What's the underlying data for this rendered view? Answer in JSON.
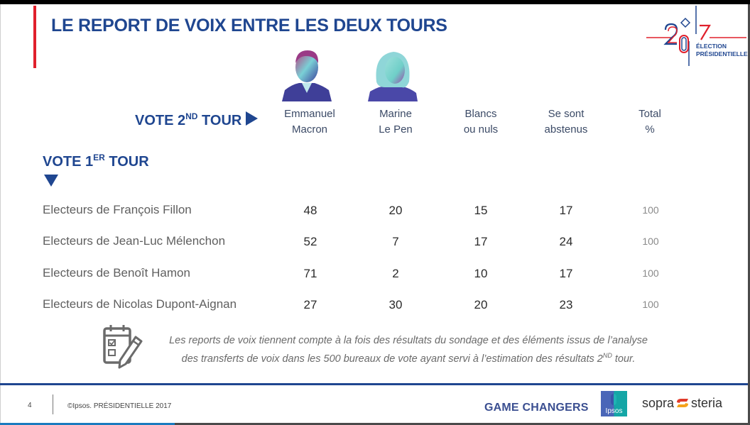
{
  "header": {
    "title": "LE REPORT DE VOIX ENTRE LES DEUX TOURS",
    "logo": {
      "year": "2017",
      "line1": "ÉLECTION",
      "line2": "PRÉSIDENTIELLE",
      "colors": {
        "red": "#e0202c",
        "blue": "#1f4690"
      }
    }
  },
  "axis_labels": {
    "vote2_prefix": "VOTE 2",
    "vote2_sup": "ND",
    "vote2_suffix": " TOUR",
    "vote1_prefix": "VOTE 1",
    "vote1_sup": "ER",
    "vote1_suffix": " TOUR"
  },
  "columns": [
    {
      "line1": "Emmanuel",
      "line2": "Macron",
      "photo": "macron-portrait"
    },
    {
      "line1": "Marine",
      "line2": "Le Pen",
      "photo": "le-pen-portrait"
    },
    {
      "line1": "Blancs",
      "line2": "ou nuls"
    },
    {
      "line1": "Se sont",
      "line2": "abstenus"
    },
    {
      "line1": "Total",
      "line2": "%"
    }
  ],
  "rows": [
    {
      "label": "Electeurs de François Fillon",
      "values": [
        "48",
        "20",
        "15",
        "17"
      ],
      "total": "100"
    },
    {
      "label": "Electeurs de Jean-Luc Mélenchon",
      "values": [
        "52",
        "7",
        "17",
        "24"
      ],
      "total": "100"
    },
    {
      "label": "Electeurs de Benoît Hamon",
      "values": [
        "71",
        "2",
        "10",
        "17"
      ],
      "total": "100"
    },
    {
      "label": "Electeurs de Nicolas Dupont-Aignan",
      "values": [
        "27",
        "30",
        "20",
        "23"
      ],
      "total": "100"
    }
  ],
  "chart_data": {
    "type": "table",
    "title": "LE REPORT DE VOIX ENTRE LES DEUX TOURS",
    "row_axis": "VOTE 1ER TOUR",
    "column_axis": "VOTE 2ND TOUR",
    "columns": [
      "Emmanuel Macron",
      "Marine Le Pen",
      "Blancs ou nuls",
      "Se sont abstenus",
      "Total %"
    ],
    "rows": [
      {
        "name": "Electeurs de François Fillon",
        "values": [
          48,
          20,
          15,
          17,
          100
        ]
      },
      {
        "name": "Electeurs de Jean-Luc Mélenchon",
        "values": [
          52,
          7,
          17,
          24,
          100
        ]
      },
      {
        "name": "Electeurs de Benoît Hamon",
        "values": [
          71,
          2,
          10,
          17,
          100
        ]
      },
      {
        "name": "Electeurs de Nicolas Dupont-Aignan",
        "values": [
          27,
          30,
          20,
          23,
          100
        ]
      }
    ]
  },
  "note": {
    "icon": "checklist-pencil-icon",
    "line1": "Les reports de voix tiennent compte à la fois des résultats du sondage et des éléments issus de l’analyse",
    "line2_prefix": "des transferts de voix dans les 500 bureaux de vote ayant servi à l’estimation des résultats 2",
    "line2_sup": "ND",
    "line2_suffix": " tour."
  },
  "footer": {
    "page_number": "4",
    "copyright": "©Ipsos.  PRÉSIDENTIELLE 2017",
    "tagline": "GAME CHANGERS",
    "ipsos_label": "Ipsos",
    "sopra_left": "sopra",
    "sopra_right": "steria"
  }
}
